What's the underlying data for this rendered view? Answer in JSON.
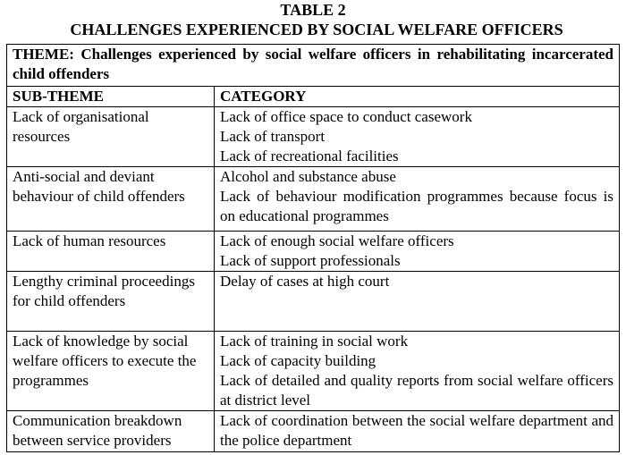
{
  "title": "TABLE 2",
  "subtitle": "CHALLENGES EXPERIENCED BY SOCIAL WELFARE OFFICERS",
  "theme": "THEME: Challenges experienced by social welfare officers in rehabilitating incarcerated child offenders",
  "headers": {
    "sub_theme": "SUB-THEME",
    "category": "CATEGORY"
  },
  "rows": [
    {
      "sub_theme": "Lack of organisational resources",
      "categories": [
        "Lack of office space to conduct casework",
        "Lack of transport",
        "Lack of recreational facilities"
      ]
    },
    {
      "sub_theme": "Anti-social and deviant behaviour of child offenders",
      "categories": [
        "Alcohol and substance abuse",
        "Lack of behaviour modification programmes because focus is on educational programmes"
      ]
    },
    {
      "sub_theme": "Lack of human resources",
      "categories": [
        "Lack of enough social welfare officers",
        "Lack of support professionals"
      ]
    },
    {
      "sub_theme": "Lengthy criminal proceedings for child offenders",
      "categories": [
        "Delay of cases at high court"
      ]
    },
    {
      "sub_theme": "Lack of knowledge by social welfare officers to execute the programmes",
      "categories": [
        "Lack of training in social work",
        "Lack of capacity building",
        "Lack of detailed and quality reports from social welfare officers at district level"
      ]
    },
    {
      "sub_theme": "Communication breakdown between service providers",
      "categories": [
        "Lack of coordination between the social welfare department and the police department"
      ]
    }
  ]
}
